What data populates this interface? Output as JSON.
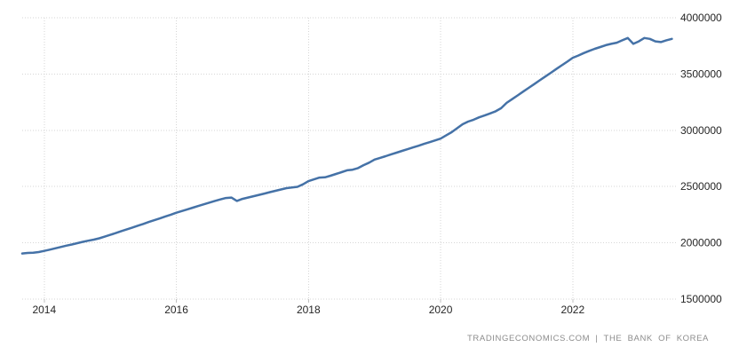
{
  "page": {
    "background": "#ffffff"
  },
  "footer": {
    "credit": "TRADINGECONOMICS.COM | THE BANK OF KOREA"
  },
  "chart_data": {
    "type": "line",
    "title": "",
    "source_label": "THE BANK OF KOREA",
    "line_color": "#4572a7",
    "grid_color": "#d6d6d6",
    "tick_color": "#c0c0c0",
    "label_color": "#262626",
    "grid_style": "dotted",
    "legend": "none",
    "y_axis_side": "right",
    "ylim": [
      1500000,
      4000000
    ],
    "y_ticks": [
      4000000,
      3500000,
      3000000,
      2500000,
      2000000,
      1500000
    ],
    "x_tick_years": [
      "2014",
      "2016",
      "2018",
      "2020",
      "2022"
    ],
    "x": [
      "2013-09",
      "2013-10",
      "2013-11",
      "2013-12",
      "2014-01",
      "2014-02",
      "2014-03",
      "2014-04",
      "2014-05",
      "2014-06",
      "2014-07",
      "2014-08",
      "2014-09",
      "2014-10",
      "2014-11",
      "2014-12",
      "2015-01",
      "2015-02",
      "2015-03",
      "2015-04",
      "2015-05",
      "2015-06",
      "2015-07",
      "2015-08",
      "2015-09",
      "2015-10",
      "2015-11",
      "2015-12",
      "2016-01",
      "2016-02",
      "2016-03",
      "2016-04",
      "2016-05",
      "2016-06",
      "2016-07",
      "2016-08",
      "2016-09",
      "2016-10",
      "2016-11",
      "2016-12",
      "2017-01",
      "2017-02",
      "2017-03",
      "2017-04",
      "2017-05",
      "2017-06",
      "2017-07",
      "2017-08",
      "2017-09",
      "2017-10",
      "2017-11",
      "2017-12",
      "2018-01",
      "2018-02",
      "2018-03",
      "2018-04",
      "2018-05",
      "2018-06",
      "2018-07",
      "2018-08",
      "2018-09",
      "2018-10",
      "2018-11",
      "2018-12",
      "2019-01",
      "2019-02",
      "2019-03",
      "2019-04",
      "2019-05",
      "2019-06",
      "2019-07",
      "2019-08",
      "2019-09",
      "2019-10",
      "2019-11",
      "2019-12",
      "2020-01",
      "2020-02",
      "2020-03",
      "2020-04",
      "2020-05",
      "2020-06",
      "2020-07",
      "2020-08",
      "2020-09",
      "2020-10",
      "2020-11",
      "2020-12",
      "2021-01",
      "2021-02",
      "2021-03",
      "2021-04",
      "2021-05",
      "2021-06",
      "2021-07",
      "2021-08",
      "2021-09",
      "2021-10",
      "2021-11",
      "2021-12",
      "2022-01",
      "2022-02",
      "2022-03",
      "2022-04",
      "2022-05",
      "2022-06",
      "2022-07",
      "2022-08",
      "2022-09",
      "2022-10",
      "2022-11",
      "2022-12",
      "2023-01",
      "2023-02",
      "2023-03",
      "2023-04",
      "2023-05",
      "2023-06",
      "2023-07"
    ],
    "values": [
      1905000,
      1910000,
      1912000,
      1918000,
      1928000,
      1939000,
      1951000,
      1963000,
      1975000,
      1985000,
      1997000,
      2009000,
      2019000,
      2028000,
      2040000,
      2055000,
      2071000,
      2087000,
      2104000,
      2120000,
      2136000,
      2152000,
      2168000,
      2185000,
      2201000,
      2217000,
      2234000,
      2250000,
      2267000,
      2282000,
      2297000,
      2312000,
      2327000,
      2342000,
      2357000,
      2372000,
      2386000,
      2398000,
      2402000,
      2372000,
      2390000,
      2402000,
      2414000,
      2426000,
      2438000,
      2450000,
      2462000,
      2474000,
      2486000,
      2492000,
      2498000,
      2520000,
      2548000,
      2564000,
      2580000,
      2582000,
      2596000,
      2612000,
      2628000,
      2644000,
      2650000,
      2664000,
      2690000,
      2712000,
      2740000,
      2755000,
      2770000,
      2786000,
      2801000,
      2817000,
      2832000,
      2848000,
      2863000,
      2879000,
      2894000,
      2910000,
      2926000,
      2954000,
      2983000,
      3018000,
      3054000,
      3077000,
      3094000,
      3115000,
      3132000,
      3150000,
      3169000,
      3196000,
      3244000,
      3277000,
      3310000,
      3344000,
      3377000,
      3410000,
      3444000,
      3477000,
      3510000,
      3544000,
      3577000,
      3610000,
      3644000,
      3664000,
      3686000,
      3706000,
      3724000,
      3740000,
      3756000,
      3768000,
      3778000,
      3800000,
      3820000,
      3768000,
      3790000,
      3820000,
      3812000,
      3790000,
      3784000,
      3800000,
      3812000
    ]
  }
}
